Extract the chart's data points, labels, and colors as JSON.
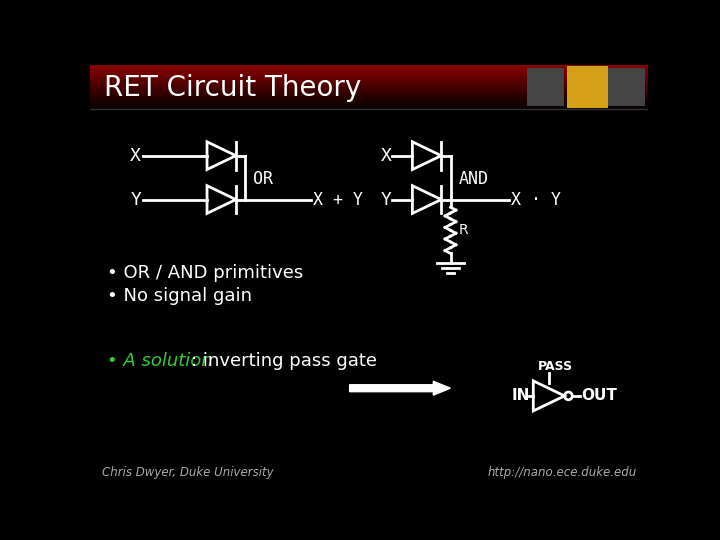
{
  "title": "RET Circuit Theory",
  "bg_color": "#000000",
  "text_color": "#ffffff",
  "title_fontsize": 20,
  "bullet1": "• OR / AND primitives",
  "bullet2": "• No signal gain",
  "bullet3_green": "• A solution",
  "bullet3_rest": ": inverting pass gate",
  "or_label": "OR",
  "and_label": "AND",
  "xpy_label": "X + Y",
  "xdy_label": "X · Y",
  "r_label": "R",
  "pass_label": "PASS",
  "in_label": "IN",
  "out_label": "OUT",
  "footer_left": "Chris Dwyer, Duke University",
  "footer_right": "http://nano.ece.duke.edu",
  "title_bar_height": 58,
  "icon_yellow_color": "#D4A017",
  "icon_gray_color": "#555555"
}
